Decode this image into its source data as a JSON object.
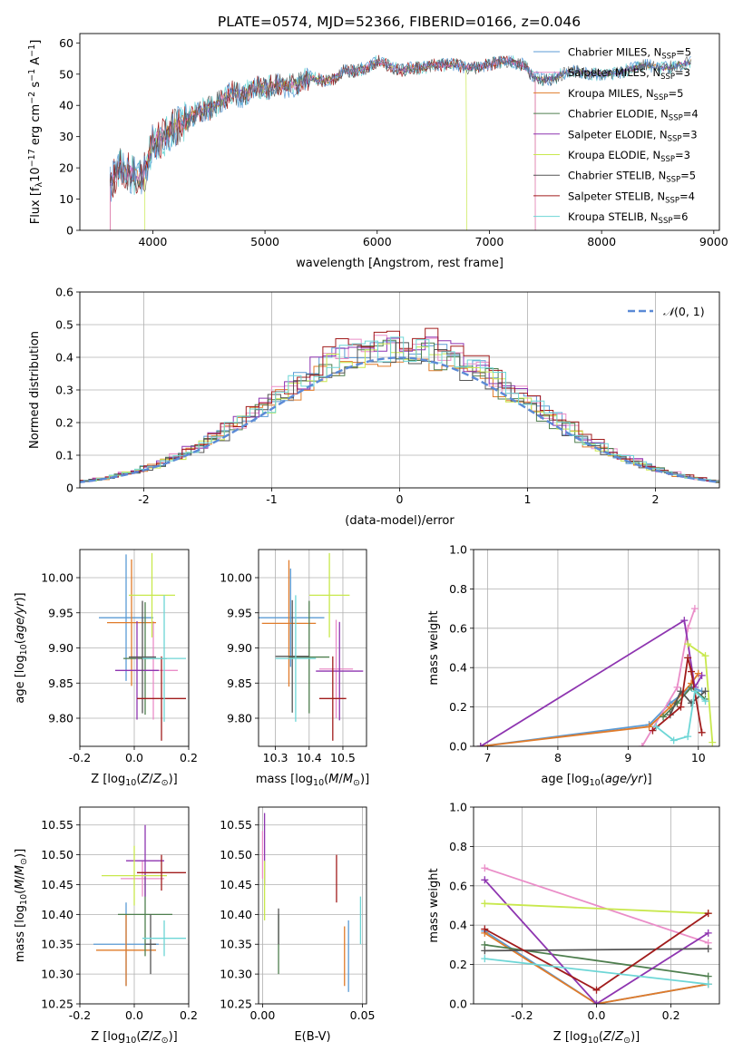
{
  "figure_title": "PLATE=0574, MJD=52366, FIBERID=0166, z=0.046",
  "colors": {
    "Chabrier MILES": "#5b9bd5",
    "Salpeter MILES": "#ea8dc8",
    "Kroupa MILES": "#e07b2a",
    "Chabrier ELODIE": "#4f7f4f",
    "Salpeter ELODIE": "#8e35b0",
    "Kroupa ELODIE": "#c8e84d",
    "Chabrier STELIB": "#555555",
    "Salpeter STELIB": "#a11c1c",
    "Kroupa STELIB": "#6dd6d6",
    "normal": "#5b8ad6",
    "grid": "#b0b0b0"
  },
  "chart_data": [
    {
      "id": "spectrum",
      "type": "line",
      "xlabel": "wavelength [Angstrom, rest frame]",
      "ylabel": "Flux [f_λ 10^-17 erg cm^-2 s^-1 A^-1]",
      "xlim": [
        3350,
        9050
      ],
      "ylim": [
        0,
        63
      ],
      "xticks": [
        4000,
        5000,
        6000,
        7000,
        8000,
        9000
      ],
      "yticks": [
        0,
        10,
        20,
        30,
        40,
        50,
        60
      ],
      "grid": false,
      "legend_position": "upper-right",
      "legend": [
        {
          "name": "Chabrier MILES",
          "nssp": "5"
        },
        {
          "name": "Salpeter MILES",
          "nssp": "3"
        },
        {
          "name": "Kroupa MILES",
          "nssp": "5"
        },
        {
          "name": "Chabrier ELODIE",
          "nssp": "4"
        },
        {
          "name": "Salpeter ELODIE",
          "nssp": "3"
        },
        {
          "name": "Kroupa ELODIE",
          "nssp": "3"
        },
        {
          "name": "Chabrier STELIB",
          "nssp": "5"
        },
        {
          "name": "Salpeter STELIB",
          "nssp": "4"
        },
        {
          "name": "Kroupa STELIB",
          "nssp": "6"
        }
      ],
      "envelope": {
        "x": [
          3620,
          3700,
          3800,
          3900,
          3950,
          4000,
          4100,
          4200,
          4300,
          4400,
          4500,
          4600,
          4700,
          4800,
          4900,
          5000,
          5100,
          5200,
          5300,
          5400,
          5500,
          5600,
          5700,
          5800,
          5900,
          6000,
          6100,
          6200,
          6300,
          6400,
          6500,
          6600,
          6700,
          6800,
          6900,
          7000,
          7100,
          7200,
          7300,
          7400,
          7500,
          7600,
          7700,
          7800,
          7900,
          8000,
          8100,
          8200,
          8300,
          8400,
          8500,
          8600,
          8700,
          8800
        ],
        "y": [
          15,
          20,
          18,
          16,
          21,
          28,
          30,
          33,
          35,
          38,
          39,
          41,
          44,
          43,
          46,
          45,
          47,
          46,
          47,
          49,
          48,
          48,
          51,
          51,
          52,
          54,
          53,
          51,
          52,
          52,
          53,
          53,
          53,
          52,
          52,
          53,
          54,
          54,
          53,
          49,
          48,
          49,
          51,
          51,
          50,
          50,
          50,
          51,
          52,
          53,
          52,
          52,
          53,
          54
        ]
      },
      "drop_lines": [
        {
          "model": "Kroupa ELODIE",
          "start": 3930,
          "end": 6800
        },
        {
          "model": "Salpeter STELIB",
          "start": 3620,
          "end": 7410
        },
        {
          "model": "Salpeter MILES",
          "start": 3620,
          "end": 7410
        }
      ]
    },
    {
      "id": "residuals",
      "type": "histogram",
      "xlabel": "(data-model)/error",
      "ylabel": "Normed distribution",
      "xlim": [
        -2.5,
        2.5
      ],
      "ylim": [
        0,
        0.6
      ],
      "xticks": [
        -2,
        -1,
        0,
        1,
        2
      ],
      "yticks": [
        0.0,
        0.1,
        0.2,
        0.3,
        0.4,
        0.5,
        0.6
      ],
      "grid": true,
      "legend_position": "upper-right",
      "legend_label": "N(0,1)",
      "bin_width": 0.1,
      "sample_peaks": [
        0.46,
        0.47,
        0.44,
        0.45,
        0.47,
        0.45,
        0.44,
        0.48,
        0.46
      ]
    },
    {
      "id": "age_vs_Z",
      "type": "errorbar",
      "xlabel": "Z [log10(Z/Z⊙)]",
      "ylabel": "age [log10(age/yr)]",
      "xlim": [
        -0.2,
        0.2
      ],
      "ylim": [
        9.76,
        10.04
      ],
      "xticks": [
        -0.2,
        0.0,
        0.2
      ],
      "yticks": [
        9.8,
        9.85,
        9.9,
        9.95,
        10.0
      ],
      "grid": true,
      "points": [
        {
          "model": "Chabrier MILES",
          "x": -0.03,
          "xerr": 0.1,
          "y": 9.943,
          "yerr": 0.09
        },
        {
          "model": "Salpeter MILES",
          "x": 0.07,
          "xerr": 0.09,
          "y": 9.868,
          "yerr": 0.07
        },
        {
          "model": "Kroupa MILES",
          "x": -0.01,
          "xerr": 0.09,
          "y": 9.936,
          "yerr": 0.09
        },
        {
          "model": "Chabrier ELODIE",
          "x": 0.04,
          "xerr": 0.08,
          "y": 9.885,
          "yerr": 0.08
        },
        {
          "model": "Salpeter ELODIE",
          "x": 0.01,
          "xerr": 0.08,
          "y": 9.868,
          "yerr": 0.07
        },
        {
          "model": "Kroupa ELODIE",
          "x": 0.065,
          "xerr": 0.085,
          "y": 9.975,
          "yerr": 0.06
        },
        {
          "model": "Chabrier STELIB",
          "x": 0.03,
          "xerr": 0.05,
          "y": 9.887,
          "yerr": 0.08
        },
        {
          "model": "Salpeter STELIB",
          "x": 0.1,
          "xerr": 0.09,
          "y": 9.828,
          "yerr": 0.06
        },
        {
          "model": "Kroupa STELIB",
          "x": 0.11,
          "xerr": 0.08,
          "y": 9.885,
          "yerr": 0.09
        }
      ]
    },
    {
      "id": "age_vs_mass",
      "type": "errorbar",
      "xlabel": "mass [log10(M/M⊙)]",
      "ylabel": "",
      "xlim": [
        10.25,
        10.57
      ],
      "ylim": [
        9.76,
        10.04
      ],
      "xticks": [
        10.3,
        10.4,
        10.5
      ],
      "yticks": [
        9.8,
        9.85,
        9.9,
        9.95,
        10.0
      ],
      "grid": true,
      "points": [
        {
          "model": "Chabrier MILES",
          "x": 10.345,
          "xerr": 0.1,
          "y": 9.943,
          "yerr": 0.07
        },
        {
          "model": "Salpeter MILES",
          "x": 10.48,
          "xerr": 0.05,
          "y": 9.87,
          "yerr": 0.07
        },
        {
          "model": "Kroupa MILES",
          "x": 10.34,
          "xerr": 0.08,
          "y": 9.935,
          "yerr": 0.09
        },
        {
          "model": "Chabrier ELODIE",
          "x": 10.4,
          "xerr": 0.06,
          "y": 9.887,
          "yerr": 0.08
        },
        {
          "model": "Salpeter ELODIE",
          "x": 10.49,
          "xerr": 0.07,
          "y": 9.867,
          "yerr": 0.07
        },
        {
          "model": "Kroupa ELODIE",
          "x": 10.46,
          "xerr": 0.06,
          "y": 9.975,
          "yerr": 0.06
        },
        {
          "model": "Chabrier STELIB",
          "x": 10.35,
          "xerr": 0.05,
          "y": 9.888,
          "yerr": 0.08
        },
        {
          "model": "Salpeter STELIB",
          "x": 10.47,
          "xerr": 0.04,
          "y": 9.828,
          "yerr": 0.06
        },
        {
          "model": "Kroupa STELIB",
          "x": 10.36,
          "xerr": 0.06,
          "y": 9.885,
          "yerr": 0.09
        }
      ]
    },
    {
      "id": "weight_vs_age",
      "type": "line",
      "xlabel": "age [log10(age/yr)]",
      "ylabel": "mass weight",
      "xlim": [
        6.8,
        10.3
      ],
      "ylim": [
        0,
        1
      ],
      "xticks": [
        7,
        8,
        9,
        10
      ],
      "yticks": [
        0.0,
        0.2,
        0.4,
        0.6,
        0.8,
        1.0
      ],
      "grid": true,
      "series": [
        {
          "model": "Chabrier MILES",
          "x": [
            6.9,
            9.3,
            9.6,
            9.9,
            10.05
          ],
          "y": [
            0.0,
            0.11,
            0.22,
            0.3,
            0.28
          ]
        },
        {
          "model": "Salpeter MILES",
          "x": [
            9.2,
            9.7,
            9.85,
            9.95
          ],
          "y": [
            0.0,
            0.3,
            0.6,
            0.7
          ]
        },
        {
          "model": "Kroupa MILES",
          "x": [
            6.9,
            9.3,
            9.6,
            9.9,
            10.0
          ],
          "y": [
            0.0,
            0.1,
            0.2,
            0.32,
            0.37
          ]
        },
        {
          "model": "Chabrier ELODIE",
          "x": [
            9.5,
            9.7,
            9.9,
            10.1
          ],
          "y": [
            0.15,
            0.22,
            0.3,
            0.24
          ]
        },
        {
          "model": "Salpeter ELODIE",
          "x": [
            6.9,
            9.8,
            9.95,
            10.05
          ],
          "y": [
            0.0,
            0.64,
            0.3,
            0.36
          ]
        },
        {
          "model": "Kroupa ELODIE",
          "x": [
            9.85,
            10.1,
            10.2
          ],
          "y": [
            0.52,
            0.46,
            0.02
          ]
        },
        {
          "model": "Chabrier STELIB",
          "x": [
            9.6,
            9.75,
            9.9,
            10.1
          ],
          "y": [
            0.16,
            0.28,
            0.22,
            0.28
          ]
        },
        {
          "model": "Salpeter STELIB",
          "x": [
            9.35,
            9.75,
            9.85,
            9.9,
            10.05
          ],
          "y": [
            0.08,
            0.2,
            0.45,
            0.38,
            0.07
          ]
        },
        {
          "model": "Kroupa STELIB",
          "x": [
            9.4,
            9.65,
            9.85,
            9.95,
            10.1
          ],
          "y": [
            0.1,
            0.03,
            0.05,
            0.28,
            0.23
          ]
        }
      ]
    },
    {
      "id": "mass_vs_Z",
      "type": "errorbar",
      "xlabel": "Z [log10(Z/Z⊙)]",
      "ylabel": "mass [log10(M/M⊙)]",
      "xlim": [
        -0.2,
        0.2
      ],
      "ylim": [
        10.25,
        10.58
      ],
      "xticks": [
        -0.2,
        0.0,
        0.2
      ],
      "yticks": [
        10.25,
        10.3,
        10.35,
        10.4,
        10.45,
        10.5,
        10.55
      ],
      "grid": true,
      "points": [
        {
          "model": "Chabrier MILES",
          "x": -0.03,
          "xerr": 0.12,
          "y": 10.35,
          "yerr": 0.07
        },
        {
          "model": "Salpeter MILES",
          "x": 0.03,
          "xerr": 0.08,
          "y": 10.46,
          "yerr": 0.03
        },
        {
          "model": "Kroupa MILES",
          "x": -0.03,
          "xerr": 0.11,
          "y": 10.34,
          "yerr": 0.06
        },
        {
          "model": "Chabrier ELODIE",
          "x": 0.04,
          "xerr": 0.1,
          "y": 10.4,
          "yerr": 0.07
        },
        {
          "model": "Salpeter ELODIE",
          "x": 0.04,
          "xerr": 0.07,
          "y": 10.49,
          "yerr": 0.06
        },
        {
          "model": "Kroupa ELODIE",
          "x": 0.0,
          "xerr": 0.12,
          "y": 10.465,
          "yerr": 0.05
        },
        {
          "model": "Chabrier STELIB",
          "x": 0.06,
          "xerr": 0.02,
          "y": 10.35,
          "yerr": 0.05
        },
        {
          "model": "Salpeter STELIB",
          "x": 0.1,
          "xerr": 0.09,
          "y": 10.47,
          "yerr": 0.03
        },
        {
          "model": "Kroupa STELIB",
          "x": 0.11,
          "xerr": 0.08,
          "y": 10.36,
          "yerr": 0.03
        }
      ]
    },
    {
      "id": "mass_vs_ebv",
      "type": "errorbar",
      "xlabel": "E(B-V)",
      "ylabel": "",
      "xlim": [
        -0.002,
        0.052
      ],
      "ylim": [
        10.25,
        10.58
      ],
      "xticks": [
        0.0,
        0.05
      ],
      "yticks": [
        10.25,
        10.3,
        10.35,
        10.4,
        10.45,
        10.5,
        10.55
      ],
      "grid": true,
      "points": [
        {
          "model": "Chabrier MILES",
          "x": 0.043,
          "yerr": 0.06,
          "y": 10.33
        },
        {
          "model": "Salpeter MILES",
          "x": 0.0,
          "yerr": 0.04,
          "y": 10.5
        },
        {
          "model": "Kroupa MILES",
          "x": 0.041,
          "yerr": 0.05,
          "y": 10.33
        },
        {
          "model": "Chabrier ELODIE",
          "x": 0.008,
          "yerr": 0.05,
          "y": 10.35
        },
        {
          "model": "Salpeter ELODIE",
          "x": 0.001,
          "yerr": 0.06,
          "y": 10.51
        },
        {
          "model": "Kroupa ELODIE",
          "x": 0.001,
          "yerr": 0.05,
          "y": 10.44
        },
        {
          "model": "Chabrier STELIB",
          "x": 0.008,
          "yerr": 0.03,
          "y": 10.38
        },
        {
          "model": "Salpeter STELIB",
          "x": 0.037,
          "yerr": 0.04,
          "y": 10.46
        },
        {
          "model": "Kroupa STELIB",
          "x": 0.049,
          "yerr": 0.04,
          "y": 10.39
        }
      ]
    },
    {
      "id": "weight_vs_Z",
      "type": "line",
      "xlabel": "Z [log10(Z/Z⊙)]",
      "ylabel": "mass weight",
      "xlim": [
        -0.33,
        0.33
      ],
      "ylim": [
        0,
        1
      ],
      "xticks": [
        -0.2,
        0.0,
        0.2
      ],
      "yticks": [
        0.0,
        0.2,
        0.4,
        0.6,
        0.8,
        1.0
      ],
      "grid": true,
      "series": [
        {
          "model": "Chabrier MILES",
          "x": [
            -0.3,
            0.0,
            0.3
          ],
          "y": [
            0.37,
            0.0,
            0.1
          ]
        },
        {
          "model": "Salpeter MILES",
          "x": [
            -0.3,
            0.3
          ],
          "y": [
            0.69,
            0.31
          ]
        },
        {
          "model": "Kroupa MILES",
          "x": [
            -0.3,
            0.0,
            0.3
          ],
          "y": [
            0.36,
            0.0,
            0.1
          ]
        },
        {
          "model": "Chabrier ELODIE",
          "x": [
            -0.3,
            0.3
          ],
          "y": [
            0.3,
            0.14
          ]
        },
        {
          "model": "Salpeter ELODIE",
          "x": [
            -0.3,
            0.0,
            0.3
          ],
          "y": [
            0.63,
            0.0,
            0.36
          ]
        },
        {
          "model": "Kroupa ELODIE",
          "x": [
            -0.3,
            0.3
          ],
          "y": [
            0.51,
            0.46
          ]
        },
        {
          "model": "Chabrier STELIB",
          "x": [
            -0.3,
            0.3
          ],
          "y": [
            0.27,
            0.28
          ]
        },
        {
          "model": "Salpeter STELIB",
          "x": [
            -0.3,
            0.0,
            0.3
          ],
          "y": [
            0.38,
            0.07,
            0.46
          ]
        },
        {
          "model": "Kroupa STELIB",
          "x": [
            -0.3,
            0.3
          ],
          "y": [
            0.23,
            0.1
          ]
        }
      ]
    }
  ]
}
